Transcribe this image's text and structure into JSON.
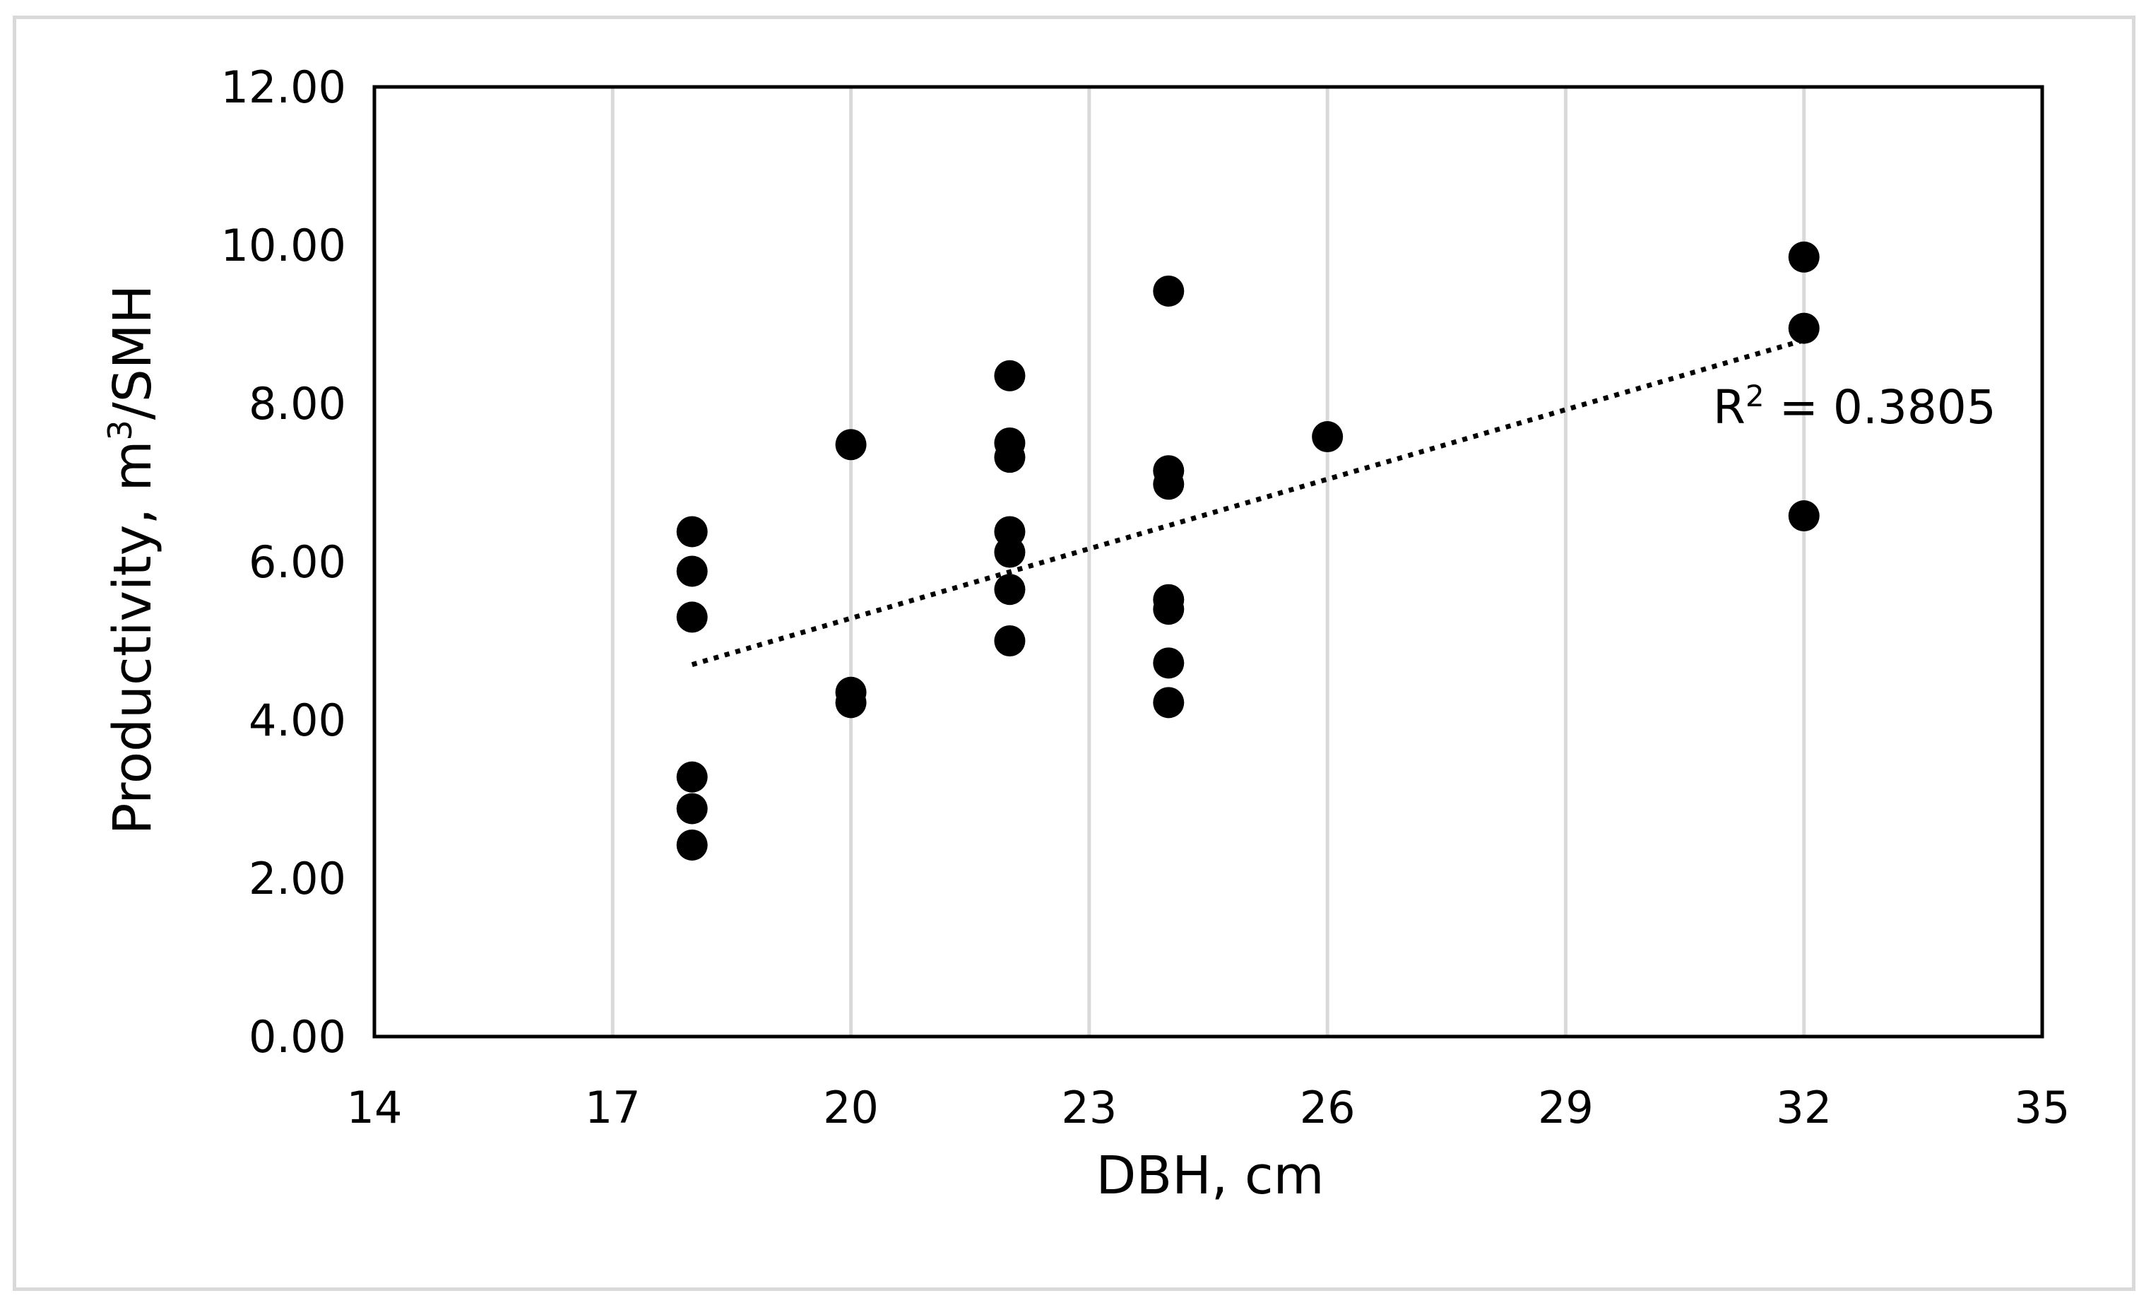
{
  "chart_data": {
    "type": "scatter",
    "title": "",
    "xlabel": "DBH, cm",
    "ylabel_main": "Productivity, m",
    "ylabel_sup": "3",
    "ylabel_rest": "/SMH",
    "xlim": [
      14,
      35
    ],
    "ylim": [
      0,
      12
    ],
    "x_ticks": [
      14,
      17,
      20,
      23,
      26,
      29,
      32,
      35
    ],
    "x_tick_labels": [
      "14",
      "17",
      "20",
      "23",
      "26",
      "29",
      "32",
      "35"
    ],
    "y_ticks": [
      0,
      2,
      4,
      6,
      8,
      10,
      12
    ],
    "y_tick_labels": [
      "0.00",
      "2.00",
      "4.00",
      "6.00",
      "8.00",
      "10.00",
      "12.00"
    ],
    "grid": "vertical",
    "points": [
      {
        "x": 18,
        "y": 6.38
      },
      {
        "x": 18,
        "y": 5.88
      },
      {
        "x": 18,
        "y": 5.3
      },
      {
        "x": 18,
        "y": 3.28
      },
      {
        "x": 18,
        "y": 2.88
      },
      {
        "x": 18,
        "y": 2.42
      },
      {
        "x": 20,
        "y": 7.48
      },
      {
        "x": 20,
        "y": 4.35
      },
      {
        "x": 20,
        "y": 4.22
      },
      {
        "x": 22,
        "y": 8.35
      },
      {
        "x": 22,
        "y": 7.5
      },
      {
        "x": 22,
        "y": 7.32
      },
      {
        "x": 22,
        "y": 6.38
      },
      {
        "x": 22,
        "y": 6.12
      },
      {
        "x": 22,
        "y": 5.65
      },
      {
        "x": 22,
        "y": 5.0
      },
      {
        "x": 24,
        "y": 9.42
      },
      {
        "x": 24,
        "y": 7.15
      },
      {
        "x": 24,
        "y": 6.98
      },
      {
        "x": 24,
        "y": 5.52
      },
      {
        "x": 24,
        "y": 5.4
      },
      {
        "x": 24,
        "y": 4.72
      },
      {
        "x": 24,
        "y": 4.22
      },
      {
        "x": 26,
        "y": 7.58
      },
      {
        "x": 32,
        "y": 9.85
      },
      {
        "x": 32,
        "y": 8.95
      },
      {
        "x": 32,
        "y": 6.58
      }
    ],
    "trendline": {
      "type": "linear",
      "x": [
        18,
        32
      ],
      "y": [
        4.7,
        8.8
      ],
      "style": "dotted"
    },
    "annotation": {
      "text_main": "R",
      "text_sup": "2",
      "text_rest": " = 0.3805"
    },
    "colors": {
      "marker": "#000000",
      "grid": "#d9d9d9",
      "axis": "#000000"
    }
  }
}
